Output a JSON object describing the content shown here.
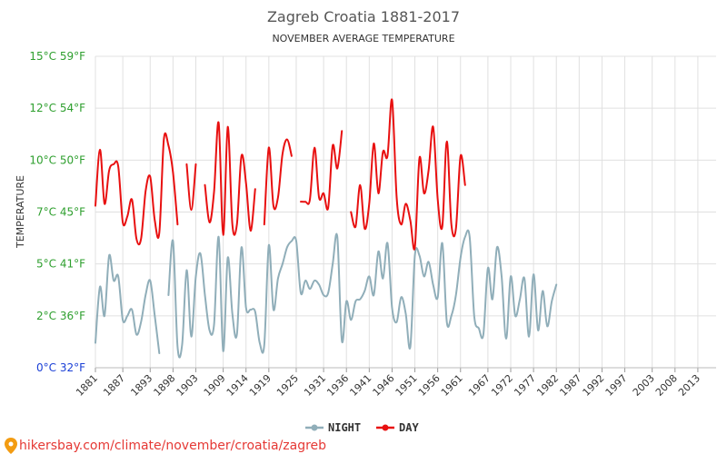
{
  "chart_data": {
    "type": "line",
    "title": "Zagreb Croatia 1881-2017",
    "subtitle": "NOVEMBER AVERAGE TEMPERATURE",
    "ylabel": "TEMPERATURE",
    "xlabel": "",
    "ylim": [
      0,
      15
    ],
    "xlim": [
      1881,
      2017
    ],
    "grid": true,
    "legend_position": "bottom-center",
    "y_ticks": [
      {
        "value": 0,
        "label": "0°C 32°F",
        "color": "#1a3fd6"
      },
      {
        "value": 2.5,
        "label": "2°C 36°F",
        "color": "#2e9f2e"
      },
      {
        "value": 5,
        "label": "5°C 41°F",
        "color": "#2e9f2e"
      },
      {
        "value": 7.5,
        "label": "7°C 45°F",
        "color": "#2e9f2e"
      },
      {
        "value": 10,
        "label": "10°C 50°F",
        "color": "#2e9f2e"
      },
      {
        "value": 12.5,
        "label": "12°C 54°F",
        "color": "#2e9f2e"
      },
      {
        "value": 15,
        "label": "15°C 59°F",
        "color": "#2e9f2e"
      }
    ],
    "x_ticks": [
      "1881",
      "1887",
      "1893",
      "1898",
      "1903",
      "1909",
      "1914",
      "1919",
      "1925",
      "1931",
      "1936",
      "1941",
      "1946",
      "1951",
      "1956",
      "1961",
      "1967",
      "1972",
      "1977",
      "1982",
      "1987",
      "1992",
      "1997",
      "2003",
      "2008",
      "2013"
    ],
    "series": [
      {
        "name": "NIGHT",
        "color": "#90aeb9",
        "points": [
          [
            1881,
            1.2
          ],
          [
            1882,
            3.9
          ],
          [
            1883,
            2.5
          ],
          [
            1884,
            5.4
          ],
          [
            1885,
            4.2
          ],
          [
            1886,
            4.4
          ],
          [
            1887,
            2.3
          ],
          [
            1888,
            2.5
          ],
          [
            1889,
            2.8
          ],
          [
            1890,
            1.6
          ],
          [
            1891,
            2.2
          ],
          [
            1892,
            3.5
          ],
          [
            1893,
            4.2
          ],
          [
            1894,
            2.5
          ],
          [
            1895,
            0.7
          ],
          [
            1897,
            3.5
          ],
          [
            1898,
            6.1
          ],
          [
            1899,
            1.0
          ],
          [
            1900,
            1.1
          ],
          [
            1901,
            4.7
          ],
          [
            1902,
            1.5
          ],
          [
            1903,
            4.4
          ],
          [
            1904,
            5.5
          ],
          [
            1905,
            3.5
          ],
          [
            1906,
            1.8
          ],
          [
            1907,
            2.1
          ],
          [
            1908,
            6.3
          ],
          [
            1909,
            0.8
          ],
          [
            1910,
            5.3
          ],
          [
            1911,
            2.6
          ],
          [
            1912,
            1.6
          ],
          [
            1913,
            5.8
          ],
          [
            1914,
            2.9
          ],
          [
            1915,
            2.8
          ],
          [
            1916,
            2.7
          ],
          [
            1917,
            1.2
          ],
          [
            1918,
            1.1
          ],
          [
            1919,
            5.9
          ],
          [
            1920,
            2.8
          ],
          [
            1921,
            4.3
          ],
          [
            1922,
            5.0
          ],
          [
            1923,
            5.8
          ],
          [
            1924,
            6.1
          ],
          [
            1925,
            6.1
          ],
          [
            1926,
            3.6
          ],
          [
            1927,
            4.2
          ],
          [
            1928,
            3.8
          ],
          [
            1929,
            4.2
          ],
          [
            1930,
            4.0
          ],
          [
            1931,
            3.5
          ],
          [
            1932,
            3.6
          ],
          [
            1933,
            5.0
          ],
          [
            1934,
            6.3
          ],
          [
            1935,
            1.3
          ],
          [
            1936,
            3.2
          ],
          [
            1937,
            2.3
          ],
          [
            1938,
            3.2
          ],
          [
            1939,
            3.3
          ],
          [
            1940,
            3.7
          ],
          [
            1941,
            4.4
          ],
          [
            1942,
            3.5
          ],
          [
            1943,
            5.6
          ],
          [
            1944,
            4.3
          ],
          [
            1945,
            6.0
          ],
          [
            1946,
            2.9
          ],
          [
            1947,
            2.2
          ],
          [
            1948,
            3.4
          ],
          [
            1949,
            2.6
          ],
          [
            1950,
            1.0
          ],
          [
            1951,
            5.4
          ],
          [
            1952,
            5.4
          ],
          [
            1953,
            4.4
          ],
          [
            1954,
            5.1
          ],
          [
            1955,
            4.0
          ],
          [
            1956,
            3.4
          ],
          [
            1957,
            6.0
          ],
          [
            1958,
            2.2
          ],
          [
            1959,
            2.5
          ],
          [
            1960,
            3.5
          ],
          [
            1961,
            5.3
          ],
          [
            1962,
            6.3
          ],
          [
            1963,
            6.3
          ],
          [
            1964,
            2.5
          ],
          [
            1965,
            1.9
          ],
          [
            1966,
            1.6
          ],
          [
            1967,
            4.8
          ],
          [
            1968,
            3.3
          ],
          [
            1969,
            5.8
          ],
          [
            1970,
            4.4
          ],
          [
            1971,
            1.4
          ],
          [
            1972,
            4.4
          ],
          [
            1973,
            2.5
          ],
          [
            1974,
            3.3
          ],
          [
            1975,
            4.3
          ],
          [
            1976,
            1.5
          ],
          [
            1977,
            4.5
          ],
          [
            1978,
            1.8
          ],
          [
            1979,
            3.7
          ],
          [
            1980,
            2.0
          ],
          [
            1981,
            3.2
          ],
          [
            1982,
            4.0
          ]
        ]
      },
      {
        "name": "DAY",
        "color": "#e81010",
        "points": [
          [
            1881,
            7.8
          ],
          [
            1882,
            10.5
          ],
          [
            1883,
            7.9
          ],
          [
            1884,
            9.5
          ],
          [
            1885,
            9.8
          ],
          [
            1886,
            9.7
          ],
          [
            1887,
            7.0
          ],
          [
            1888,
            7.3
          ],
          [
            1889,
            8.1
          ],
          [
            1890,
            6.2
          ],
          [
            1891,
            6.2
          ],
          [
            1892,
            8.5
          ],
          [
            1893,
            9.2
          ],
          [
            1894,
            7.1
          ],
          [
            1895,
            6.5
          ],
          [
            1896,
            11.0
          ],
          [
            1897,
            10.7
          ],
          [
            1898,
            9.4
          ],
          [
            1899,
            6.9
          ],
          [
            1901,
            9.8
          ],
          [
            1902,
            7.6
          ],
          [
            1903,
            9.8
          ],
          [
            1905,
            8.8
          ],
          [
            1906,
            7.0
          ],
          [
            1907,
            8.5
          ],
          [
            1908,
            11.8
          ],
          [
            1909,
            6.4
          ],
          [
            1910,
            11.6
          ],
          [
            1911,
            6.9
          ],
          [
            1912,
            6.9
          ],
          [
            1913,
            10.2
          ],
          [
            1914,
            8.9
          ],
          [
            1915,
            6.6
          ],
          [
            1916,
            8.6
          ],
          [
            1918,
            6.9
          ],
          [
            1919,
            10.6
          ],
          [
            1920,
            7.8
          ],
          [
            1921,
            8.2
          ],
          [
            1922,
            10.3
          ],
          [
            1923,
            11.0
          ],
          [
            1924,
            10.2
          ],
          [
            1926,
            8.0
          ],
          [
            1927,
            8.0
          ],
          [
            1928,
            8.1
          ],
          [
            1929,
            10.6
          ],
          [
            1930,
            8.2
          ],
          [
            1931,
            8.4
          ],
          [
            1932,
            7.7
          ],
          [
            1933,
            10.7
          ],
          [
            1934,
            9.6
          ],
          [
            1935,
            11.4
          ],
          [
            1937,
            7.5
          ],
          [
            1938,
            6.8
          ],
          [
            1939,
            8.8
          ],
          [
            1940,
            6.7
          ],
          [
            1941,
            7.9
          ],
          [
            1942,
            10.8
          ],
          [
            1943,
            8.4
          ],
          [
            1944,
            10.4
          ],
          [
            1945,
            10.2
          ],
          [
            1946,
            12.9
          ],
          [
            1947,
            8.2
          ],
          [
            1948,
            6.9
          ],
          [
            1949,
            7.9
          ],
          [
            1950,
            7.1
          ],
          [
            1951,
            5.8
          ],
          [
            1952,
            10.1
          ],
          [
            1953,
            8.4
          ],
          [
            1954,
            9.5
          ],
          [
            1955,
            11.6
          ],
          [
            1956,
            8.1
          ],
          [
            1957,
            6.8
          ],
          [
            1958,
            10.9
          ],
          [
            1959,
            6.9
          ],
          [
            1960,
            6.7
          ],
          [
            1961,
            10.2
          ],
          [
            1962,
            8.8
          ]
        ]
      }
    ]
  },
  "legend": {
    "night_label": "NIGHT",
    "day_label": "DAY"
  },
  "footer": {
    "text": "hikersbay.com/climate/november/croatia/zagreb"
  }
}
